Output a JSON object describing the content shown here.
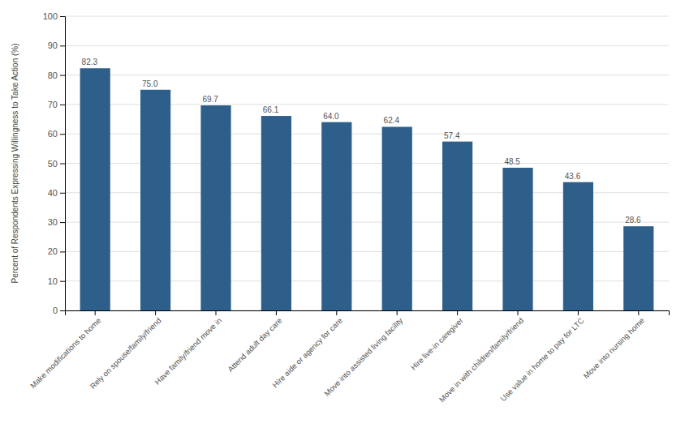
{
  "chart_data": {
    "type": "bar",
    "categories": [
      "Make modifications to home",
      "Rely on spouse/family/friend",
      "Have family/friend move in",
      "Attend adult day care",
      "Hire aide or agency for care",
      "Move into assisted living facility",
      "Hire live-in caregiver",
      "Move in with children/family/friend",
      "Use value in home to pay for LTC",
      "Move into nursing home"
    ],
    "values": [
      82.3,
      75.0,
      69.7,
      66.1,
      64.0,
      62.4,
      57.4,
      48.5,
      43.6,
      28.6
    ],
    "value_labels": [
      "82.3",
      "75.0",
      "69.7",
      "66.1",
      "64.0",
      "62.4",
      "57.4",
      "48.5",
      "43.6",
      "28.6"
    ],
    "color": "#2E5F8A",
    "ylabel": "Percent of Respondents Expressing Willingness to Take Action (%)",
    "ylim": [
      0,
      100
    ],
    "yticks": [
      0,
      10,
      20,
      30,
      40,
      50,
      60,
      70,
      80,
      90,
      100
    ],
    "grid": true,
    "data_labels": true
  }
}
